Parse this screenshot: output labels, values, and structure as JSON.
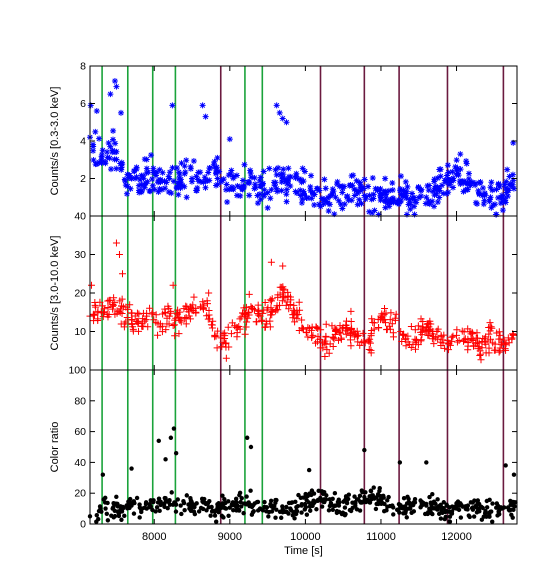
{
  "chart_data": {
    "type": "scatter",
    "x": {
      "label": "Time [s]",
      "range": [
        7150,
        12800
      ],
      "ticks": [
        8000,
        9000,
        10000,
        11000,
        12000
      ]
    },
    "vertical_lines": {
      "green": {
        "color": "#1aa33a",
        "x": [
          7310,
          7650,
          7980,
          8280,
          9200,
          9430
        ]
      },
      "purple": {
        "color": "#6b1a3f",
        "x": [
          8880,
          10200,
          10780,
          11240,
          11880,
          12620
        ]
      }
    },
    "panels": [
      {
        "id": "soft",
        "ylabel": "Counts/s [0.3-3.0 keV]",
        "ylim": [
          0,
          8
        ],
        "yticks": [
          2,
          4,
          6,
          8
        ],
        "marker": "asterisk",
        "color": "#0000ff",
        "series": [
          {
            "x": [
              7150,
              7300,
              7450,
              7550,
              7700,
              7900,
              8050,
              8200,
              8350,
              8500,
              8650,
              8800,
              8950,
              9100,
              9250,
              9400,
              9550,
              9700,
              9800,
              9950,
              10100,
              10250,
              10400,
              10550,
              10700,
              10850,
              11000,
              11150,
              11300,
              11450,
              11600,
              11750,
              11900,
              12000,
              12150,
              12300,
              12450,
              12600,
              12750
            ],
            "y": [
              4.2,
              3.0,
              3.5,
              2.8,
              2.0,
              2.3,
              1.8,
              2.0,
              1.8,
              2.0,
              1.8,
              2.6,
              1.4,
              1.6,
              1.8,
              1.6,
              1.4,
              2.0,
              1.6,
              1.8,
              1.2,
              0.9,
              1.0,
              1.0,
              1.3,
              1.1,
              1.0,
              0.9,
              1.1,
              0.8,
              1.0,
              1.5,
              1.9,
              2.2,
              1.7,
              1.2,
              1.0,
              1.1,
              1.9
            ]
          },
          {
            "x": [
              7160,
              7240,
              7420,
              7480,
              7500,
              7560,
              8240,
              8640,
              8680,
              9000,
              9620,
              9660,
              9700,
              9750,
              12050,
              12750
            ],
            "y": [
              5.9,
              5.6,
              6.5,
              7.2,
              6.9,
              5.5,
              5.9,
              5.9,
              5.3,
              4.1,
              5.9,
              5.5,
              5.2,
              5.0,
              3.3,
              3.9
            ]
          }
        ]
      },
      {
        "id": "hard",
        "ylabel": "Counts/s [3.0-10.0 keV]",
        "ylim": [
          0,
          40
        ],
        "yticks": [
          10,
          20,
          30,
          40
        ],
        "marker": "plus",
        "color": "#ff0000",
        "series": [
          {
            "x": [
              7150,
              7300,
              7450,
              7550,
              7700,
              7900,
              8050,
              8200,
              8350,
              8500,
              8650,
              8800,
              8950,
              9100,
              9250,
              9400,
              9550,
              9700,
              9800,
              9950,
              10100,
              10250,
              10400,
              10550,
              10700,
              10850,
              11000,
              11150,
              11300,
              11450,
              11600,
              11750,
              11900,
              12000,
              12150,
              12300,
              12450,
              12600,
              12750
            ],
            "y": [
              14,
              15,
              17,
              15,
              13,
              14,
              12,
              14,
              13,
              16,
              16,
              9,
              7,
              11,
              15,
              14,
              15,
              20,
              17,
              13,
              9,
              7,
              10,
              11,
              9,
              8,
              14,
              12,
              9,
              8,
              11,
              8,
              7,
              9,
              8,
              7,
              8,
              7,
              9
            ]
          },
          {
            "x": [
              7170,
              7500,
              7540,
              7580,
              8250,
              8700,
              8720,
              9550,
              9700
            ],
            "y": [
              22,
              33,
              30,
              25,
              22,
              18,
              20,
              28,
              27
            ]
          }
        ]
      },
      {
        "id": "ratio",
        "ylabel": "Color ratio",
        "ylim": [
          0,
          100
        ],
        "yticks": [
          0,
          20,
          40,
          60,
          80,
          100
        ],
        "marker": "dot",
        "color": "#000000",
        "series": [
          {
            "x": [
              7150,
              7300,
              7450,
              7550,
              7700,
              7900,
              8050,
              8200,
              8350,
              8500,
              8650,
              8800,
              8950,
              9100,
              9250,
              9400,
              9550,
              9700,
              9800,
              9950,
              10100,
              10250,
              10400,
              10550,
              10700,
              10850,
              11000,
              11150,
              11300,
              11450,
              11600,
              11750,
              11900,
              12000,
              12150,
              12300,
              12450,
              12600,
              12750
            ],
            "y": [
              5,
              8,
              10,
              8,
              12,
              10,
              14,
              15,
              12,
              12,
              14,
              8,
              10,
              12,
              14,
              10,
              12,
              8,
              10,
              12,
              14,
              16,
              12,
              14,
              16,
              18,
              16,
              12,
              10,
              14,
              12,
              10,
              8,
              10,
              12,
              10,
              8,
              10,
              12
            ]
          },
          {
            "x": [
              7320,
              7700,
              8060,
              8150,
              8220,
              8260,
              8290,
              9230,
              9280,
              10050,
              10780,
              11250,
              11600,
              12650,
              12760
            ],
            "y": [
              32,
              36,
              54,
              42,
              56,
              62,
              46,
              56,
              50,
              35,
              48,
              40,
              40,
              38,
              32
            ]
          }
        ]
      }
    ]
  }
}
